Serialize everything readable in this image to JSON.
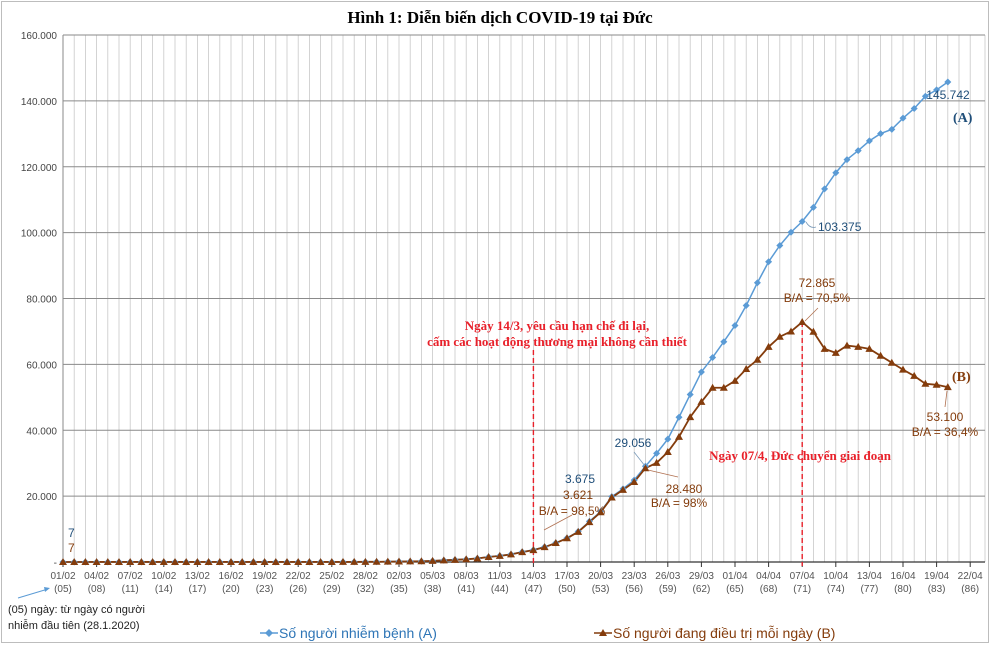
{
  "chart_data": {
    "type": "line",
    "title": "Hình 1: Diễn biến dịch COVID-19 tại Đức",
    "xlabel": "",
    "ylabel": "",
    "ylim": [
      0,
      160000
    ],
    "yticks": [
      "-",
      "20.000",
      "40.000",
      "60.000",
      "80.000",
      "100.000",
      "120.000",
      "140.000",
      "160.000"
    ],
    "xticks": [
      {
        "date": "01/02",
        "day": "(05)"
      },
      {
        "date": "04/02",
        "day": "(08)"
      },
      {
        "date": "07/02",
        "day": "(11)"
      },
      {
        "date": "10/02",
        "day": "(14)"
      },
      {
        "date": "13/02",
        "day": "(17)"
      },
      {
        "date": "16/02",
        "day": "(20)"
      },
      {
        "date": "19/02",
        "day": "(23)"
      },
      {
        "date": "22/02",
        "day": "(26)"
      },
      {
        "date": "25/02",
        "day": "(29)"
      },
      {
        "date": "28/02",
        "day": "(32)"
      },
      {
        "date": "02/03",
        "day": "(35)"
      },
      {
        "date": "05/03",
        "day": "(38)"
      },
      {
        "date": "08/03",
        "day": "(41)"
      },
      {
        "date": "11/03",
        "day": "(44)"
      },
      {
        "date": "14/03",
        "day": "(47)"
      },
      {
        "date": "17/03",
        "day": "(50)"
      },
      {
        "date": "20/03",
        "day": "(53)"
      },
      {
        "date": "23/03",
        "day": "(56)"
      },
      {
        "date": "26/03",
        "day": "(59)"
      },
      {
        "date": "29/03",
        "day": "(62)"
      },
      {
        "date": "01/04",
        "day": "(65)"
      },
      {
        "date": "04/04",
        "day": "(68)"
      },
      {
        "date": "07/04",
        "day": "(71)"
      },
      {
        "date": "10/04",
        "day": "(74)"
      },
      {
        "date": "13/04",
        "day": "(77)"
      },
      {
        "date": "16/04",
        "day": "(80)"
      },
      {
        "date": "19/04",
        "day": "(83)"
      },
      {
        "date": "22/04",
        "day": "(86)"
      }
    ],
    "x_range_days": [
      0,
      81
    ],
    "grid": true,
    "legend_position": "bottom",
    "series": [
      {
        "name": "Số người nhiễm bệnh (A)",
        "color": "#5b9bd5",
        "marker": "diamond",
        "values": [
          7,
          8,
          10,
          12,
          12,
          12,
          13,
          14,
          14,
          16,
          16,
          16,
          16,
          16,
          16,
          16,
          16,
          16,
          16,
          16,
          16,
          16,
          16,
          16,
          18,
          21,
          26,
          53,
          66,
          117,
          150,
          188,
          240,
          349,
          534,
          684,
          847,
          1112,
          1567,
          1908,
          2369,
          3062,
          3675,
          4585,
          5795,
          7272,
          9257,
          12327,
          15320,
          19848,
          22213,
          24873,
          29056,
          32986,
          37323,
          43938,
          50871,
          57695,
          62095,
          66885,
          71808,
          77872,
          84794,
          91159,
          96092,
          100123,
          103375,
          107663,
          113296,
          118181,
          122171,
          124908,
          127854,
          130072,
          131359,
          134753,
          137698,
          141397,
          143342,
          145742
        ]
      },
      {
        "name": "Số người đang điều trị mỗi ngày (B)",
        "color": "#843c0c",
        "marker": "triangle",
        "values": [
          7,
          8,
          10,
          12,
          12,
          12,
          13,
          14,
          14,
          16,
          16,
          16,
          16,
          16,
          16,
          16,
          16,
          16,
          16,
          16,
          16,
          16,
          16,
          16,
          18,
          21,
          26,
          50,
          62,
          110,
          140,
          175,
          225,
          330,
          510,
          660,
          820,
          1080,
          1520,
          1860,
          2310,
          3000,
          3621,
          4500,
          5750,
          7200,
          9150,
          12100,
          15100,
          19600,
          21900,
          24300,
          28480,
          30100,
          33400,
          38000,
          44000,
          48600,
          52900,
          52900,
          55000,
          58600,
          61400,
          65300,
          68400,
          70000,
          72865,
          69900,
          64700,
          63500,
          65700,
          65300,
          64700,
          62600,
          60500,
          58400,
          56500,
          54100,
          53800,
          53100
        ]
      }
    ],
    "annotations": {
      "a_start": "7",
      "b_start": "7",
      "a_1403": "3.675",
      "b_1403": "3.621",
      "ratio_1403": "B/A = 98,5%",
      "a_2303": "29.056",
      "b_2303": "28.480",
      "ratio_2303": "B/A = 98%",
      "a_0704": "103.375",
      "b_0704": "72.865",
      "ratio_0704": "B/A = 70,5%",
      "a_end": "145.742",
      "b_end": "53.100",
      "ratio_end": "B/A = 36,4%",
      "series_a_tag": "(A)",
      "series_b_tag": "(B)",
      "event1_line1": "Ngày 14/3, yêu cầu hạn chế đi lại,",
      "event1_line2": "cấm các hoạt động thương mại không cần thiết",
      "event2": "Ngày 07/4, Đức chuyển giai đoạn"
    },
    "footnote_line1": "(05) ngày: từ ngày có người",
    "footnote_line2": "nhiễm đầu tiên (28.1.2020)"
  }
}
